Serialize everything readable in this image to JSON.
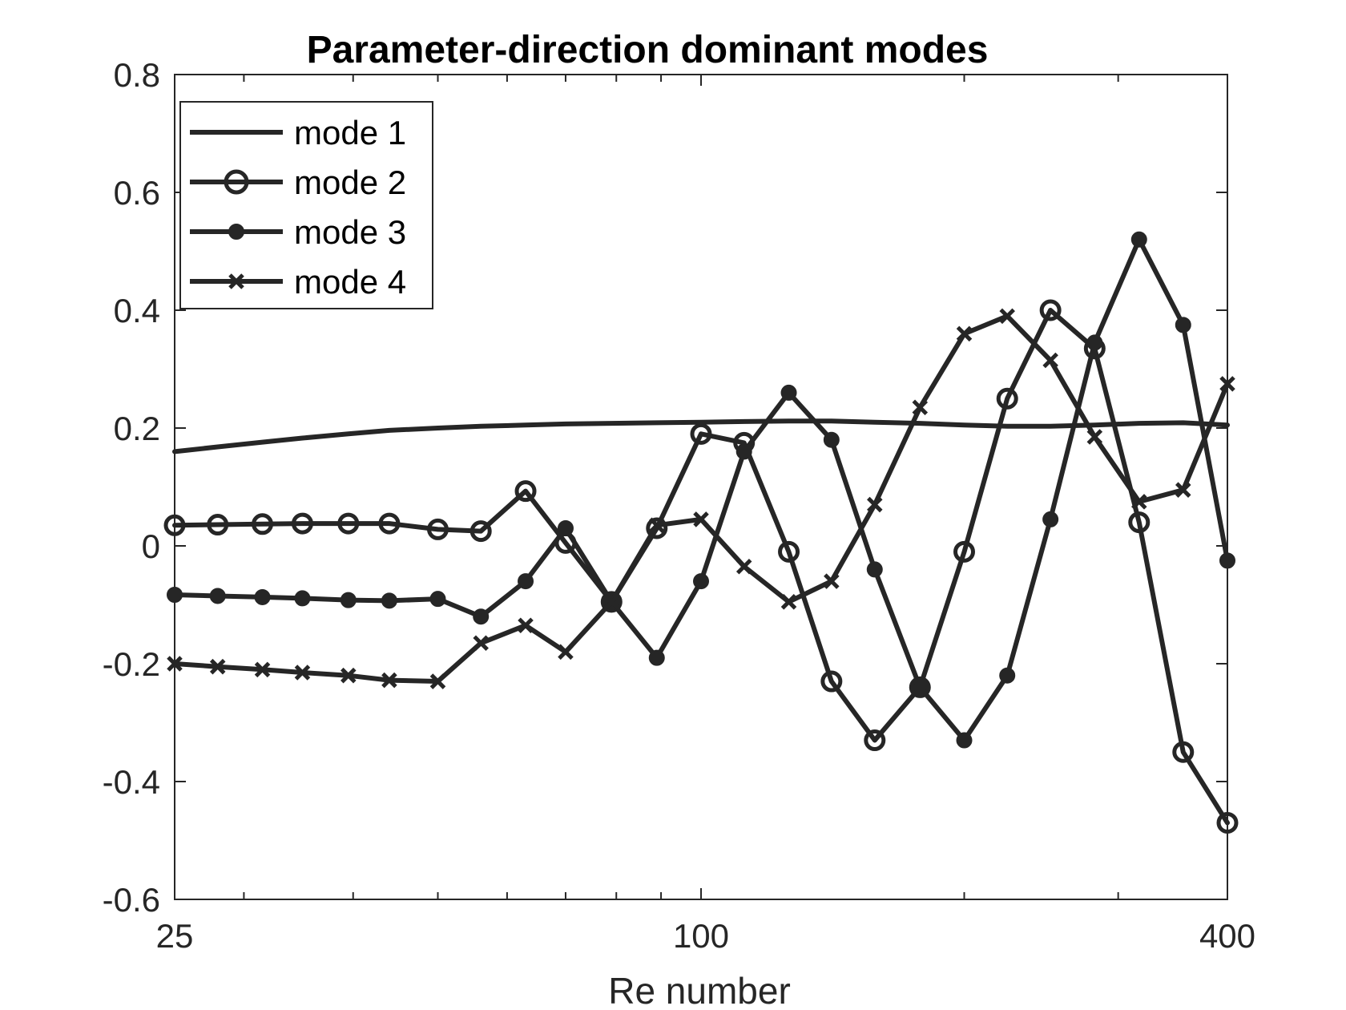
{
  "chart_data": {
    "type": "line",
    "title": "Parameter-direction dominant modes",
    "xlabel": "Re number",
    "ylabel": "",
    "x_scale": "log",
    "xlim": [
      25,
      400
    ],
    "ylim": [
      -0.6,
      0.8
    ],
    "xticks": [
      25,
      100,
      400
    ],
    "xtick_labels": [
      "25",
      "100",
      "400"
    ],
    "yticks": [
      -0.6,
      -0.4,
      -0.2,
      0,
      0.2,
      0.4,
      0.6,
      0.8
    ],
    "ytick_labels": [
      "-0.6",
      "-0.4",
      "-0.2",
      "0",
      "0.2",
      "0.4",
      "0.6",
      "0.8"
    ],
    "grid": false,
    "legend_position": "top-left",
    "line_color": "#262626",
    "x": [
      25,
      28,
      31.5,
      35,
      39.5,
      44,
      50,
      56,
      63,
      70,
      79,
      89,
      100,
      112,
      126,
      141,
      158,
      178,
      200,
      224,
      251,
      282,
      317,
      356,
      400
    ],
    "series": [
      {
        "name": "mode 1",
        "marker": "none",
        "values": [
          0.16,
          0.168,
          0.176,
          0.183,
          0.19,
          0.196,
          0.2,
          0.203,
          0.205,
          0.207,
          0.208,
          0.209,
          0.21,
          0.211,
          0.212,
          0.212,
          0.21,
          0.208,
          0.205,
          0.203,
          0.203,
          0.205,
          0.208,
          0.209,
          0.205
        ]
      },
      {
        "name": "mode 2",
        "marker": "circle",
        "values": [
          0.035,
          0.036,
          0.037,
          0.038,
          0.038,
          0.038,
          0.028,
          0.025,
          0.093,
          0.005,
          -0.095,
          0.03,
          0.19,
          0.175,
          -0.01,
          -0.23,
          -0.33,
          -0.24,
          -0.01,
          0.25,
          0.4,
          0.335,
          0.04,
          -0.35,
          -0.47
        ]
      },
      {
        "name": "mode 3",
        "marker": "dot",
        "values": [
          -0.083,
          -0.085,
          -0.087,
          -0.089,
          -0.092,
          -0.093,
          -0.09,
          -0.12,
          -0.06,
          0.03,
          -0.095,
          -0.19,
          -0.06,
          0.16,
          0.26,
          0.18,
          -0.04,
          -0.24,
          -0.33,
          -0.22,
          0.045,
          0.345,
          0.52,
          0.375,
          -0.025
        ]
      },
      {
        "name": "mode 4",
        "marker": "x",
        "values": [
          -0.2,
          -0.205,
          -0.21,
          -0.215,
          -0.22,
          -0.228,
          -0.23,
          -0.165,
          -0.135,
          -0.18,
          -0.095,
          0.035,
          0.045,
          -0.035,
          -0.095,
          -0.06,
          0.07,
          0.235,
          0.36,
          0.39,
          0.315,
          0.185,
          0.075,
          0.095,
          0.275
        ]
      }
    ]
  }
}
